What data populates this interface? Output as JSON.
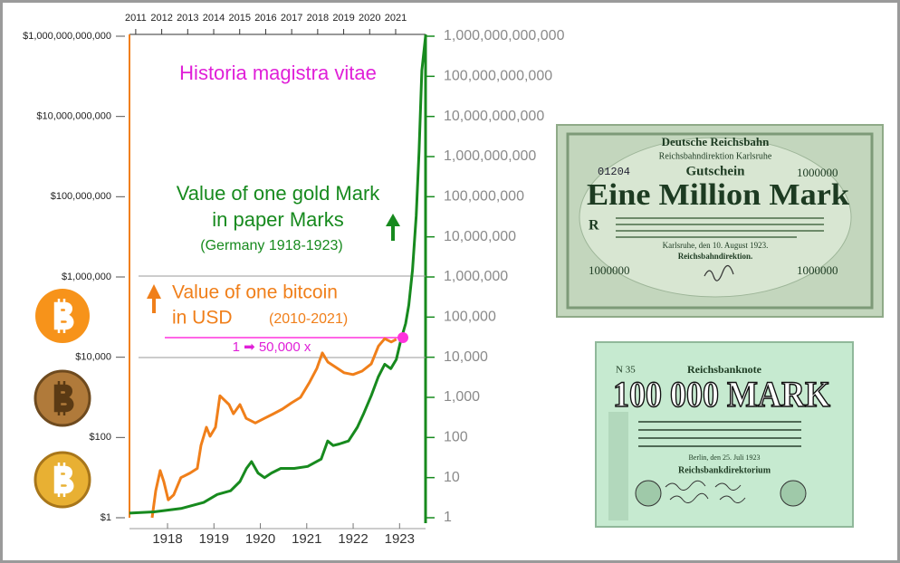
{
  "chart_data": {
    "type": "line",
    "log_scale": true,
    "xlim": [
      1917.18,
      1923.56
    ],
    "xticks": [
      1918,
      1919,
      1920,
      1921,
      1922,
      1923
    ],
    "x2lim": [
      2010.76,
      2022.15
    ],
    "x2ticks": [
      2011,
      2012,
      2013,
      2014,
      2015,
      2016,
      2017,
      2018,
      2019,
      2020,
      2021
    ],
    "ylim": [
      1,
      1000000000000
    ],
    "yticks": [
      {
        "value": 1,
        "label": "$1"
      },
      {
        "value": 100,
        "label": "$100"
      },
      {
        "value": 10000,
        "label": "$10,000"
      },
      {
        "value": 1000000,
        "label": "$1,000,000"
      },
      {
        "value": 100000000,
        "label": "$100,000,000"
      },
      {
        "value": 10000000000,
        "label": "$10,000,000,000"
      },
      {
        "value": 1000000000000,
        "label": "$1,000,000,000,000"
      }
    ],
    "y2lim": [
      1,
      1000000000000
    ],
    "y2ticks": [
      1,
      10,
      100,
      {
        "value": 1000,
        "label": "1,000"
      },
      {
        "value": 10000,
        "label": "10,000"
      },
      {
        "value": 100000,
        "label": "100,000"
      },
      {
        "value": 1000000,
        "label": "1,000,000"
      },
      {
        "value": 10000000,
        "label": "10,000,000"
      },
      {
        "value": 100000000,
        "label": "100,000,000"
      },
      {
        "value": 1000000000,
        "label": "1,000,000,000"
      },
      {
        "value": 10000000000,
        "label": "10,000,000,000"
      },
      {
        "value": 100000000000,
        "label": "100,000,000,000"
      },
      {
        "value": 1000000000000,
        "label": "1,000,000,000,000"
      }
    ],
    "series": [
      {
        "color": "#f07f1a",
        "x_axis": "x2",
        "x": [
          2011.63,
          2011.77,
          2011.94,
          2012.08,
          2012.25,
          2012.46,
          2012.74,
          2013.09,
          2013.37,
          2013.51,
          2013.72,
          2013.86,
          2014.07,
          2014.24,
          2014.41,
          2014.59,
          2014.76,
          2015.01,
          2015.25,
          2015.6,
          2015.95,
          2016.3,
          2016.64,
          2016.99,
          2017.34,
          2017.69,
          2017.97,
          2018.18,
          2018.39,
          2018.67,
          2019.01,
          2019.36,
          2019.71,
          2020.06,
          2020.34,
          2020.58,
          2020.83,
          2021.03
        ],
        "values": [
          1,
          4.7,
          15,
          8,
          2.8,
          3.7,
          10,
          13,
          17,
          64,
          180,
          107,
          180,
          1100,
          860,
          660,
          390,
          660,
          300,
          230,
          300,
          390,
          510,
          730,
          1000,
          2400,
          5300,
          12800,
          7600,
          5800,
          4100,
          3700,
          4500,
          6800,
          19000,
          29000,
          24000,
          28000
        ]
      },
      {
        "color": "#178a1e",
        "axis": "y2",
        "x": [
          1917.18,
          1917.71,
          1918.29,
          1918.78,
          1919.07,
          1919.36,
          1919.56,
          1919.7,
          1919.81,
          1919.95,
          1920.09,
          1920.24,
          1920.44,
          1920.73,
          1921.02,
          1921.31,
          1921.45,
          1921.57,
          1921.7,
          1921.9,
          1922.09,
          1922.23,
          1922.39,
          1922.54,
          1922.68,
          1922.81,
          1922.93,
          1923.03,
          1923.13,
          1923.2,
          1923.28,
          1923.36,
          1923.42,
          1923.48,
          1923.56
        ],
        "values": [
          1.3,
          1.4,
          1.7,
          2.4,
          3.8,
          4.7,
          8,
          17,
          25,
          13,
          10,
          13,
          17,
          17,
          19,
          29,
          82,
          63,
          69,
          82,
          180,
          400,
          1100,
          3200,
          6700,
          5200,
          8800,
          27000,
          69000,
          200000,
          1500000,
          34000000,
          1300000000,
          140000000000,
          1000000000000
        ]
      }
    ],
    "annotations": {
      "motto": "Historia magistra vitae",
      "gold_line1": "Value of one gold Mark",
      "gold_line2": "in paper Marks",
      "gold_line3": "(Germany 1918-1923)",
      "btc_line1": "Value of one bitcoin",
      "btc_line2": "in USD",
      "btc_line3": "(2010-2021)",
      "ratio": "1 ➡ 50,000 x"
    }
  },
  "banknotes": [
    {
      "issuer": "Deutsche Reichsbahn",
      "office": "Reichsbahndirektion Karlsruhe",
      "kind": "Gutschein",
      "title": "Eine Million Mark",
      "serial": "01204",
      "denomination": "1000000",
      "letter": "R",
      "date": "Karlsruhe, den 10. August 1923.",
      "signatory": "Reichsbahndirektion."
    },
    {
      "serial": "N 35",
      "kind": "Reichsbanknote",
      "title": "100 000 MARK",
      "date": "Berlin, den 25. Juli 1923",
      "signatory": "Reichsbankdirektorium"
    }
  ]
}
